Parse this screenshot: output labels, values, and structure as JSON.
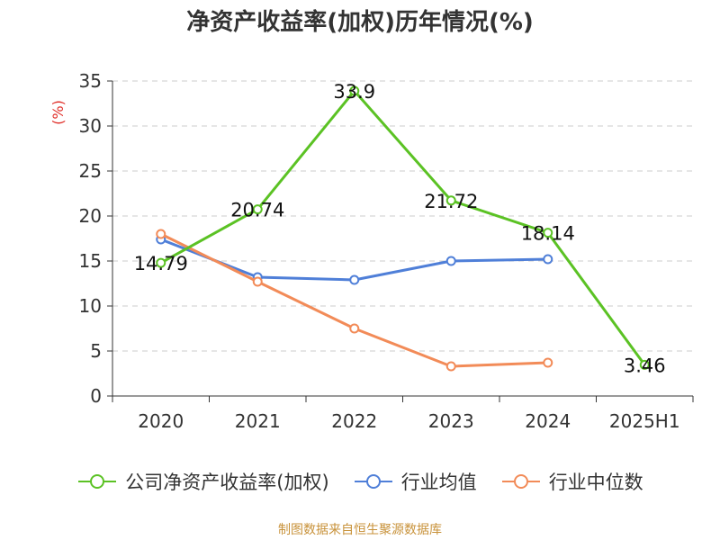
{
  "title": "净资产收益率(加权)历年情况(%)",
  "source": "制图数据来自恒生聚源数据库",
  "colors": {
    "series1": "#5bc224",
    "series2": "#4f7fd8",
    "series3": "#f28b58",
    "grid": "#cccccc",
    "axis": "#333333",
    "unit": "#e0302a"
  },
  "chart_data": {
    "type": "line",
    "title": "净资产收益率(加权)历年情况(%)",
    "ylabel": "(%)",
    "xlabel": "",
    "categories": [
      "2020",
      "2021",
      "2022",
      "2023",
      "2024",
      "2025H1"
    ],
    "ylim": [
      0,
      35
    ],
    "yticks": [
      0,
      5,
      10,
      15,
      20,
      25,
      30,
      35
    ],
    "grid": true,
    "legend_position": "bottom",
    "series": [
      {
        "name": "公司净资产收益率(加权)",
        "values": [
          14.79,
          20.74,
          33.9,
          21.72,
          18.14,
          3.46
        ],
        "labels": [
          "14.79",
          "20.74",
          "33.9",
          "21.72",
          "18.14",
          "3.46"
        ]
      },
      {
        "name": "行业均值",
        "values": [
          17.4,
          13.2,
          12.9,
          15.0,
          15.2,
          null
        ]
      },
      {
        "name": "行业中位数",
        "values": [
          18.0,
          12.7,
          7.5,
          3.3,
          3.7,
          null
        ]
      }
    ]
  }
}
